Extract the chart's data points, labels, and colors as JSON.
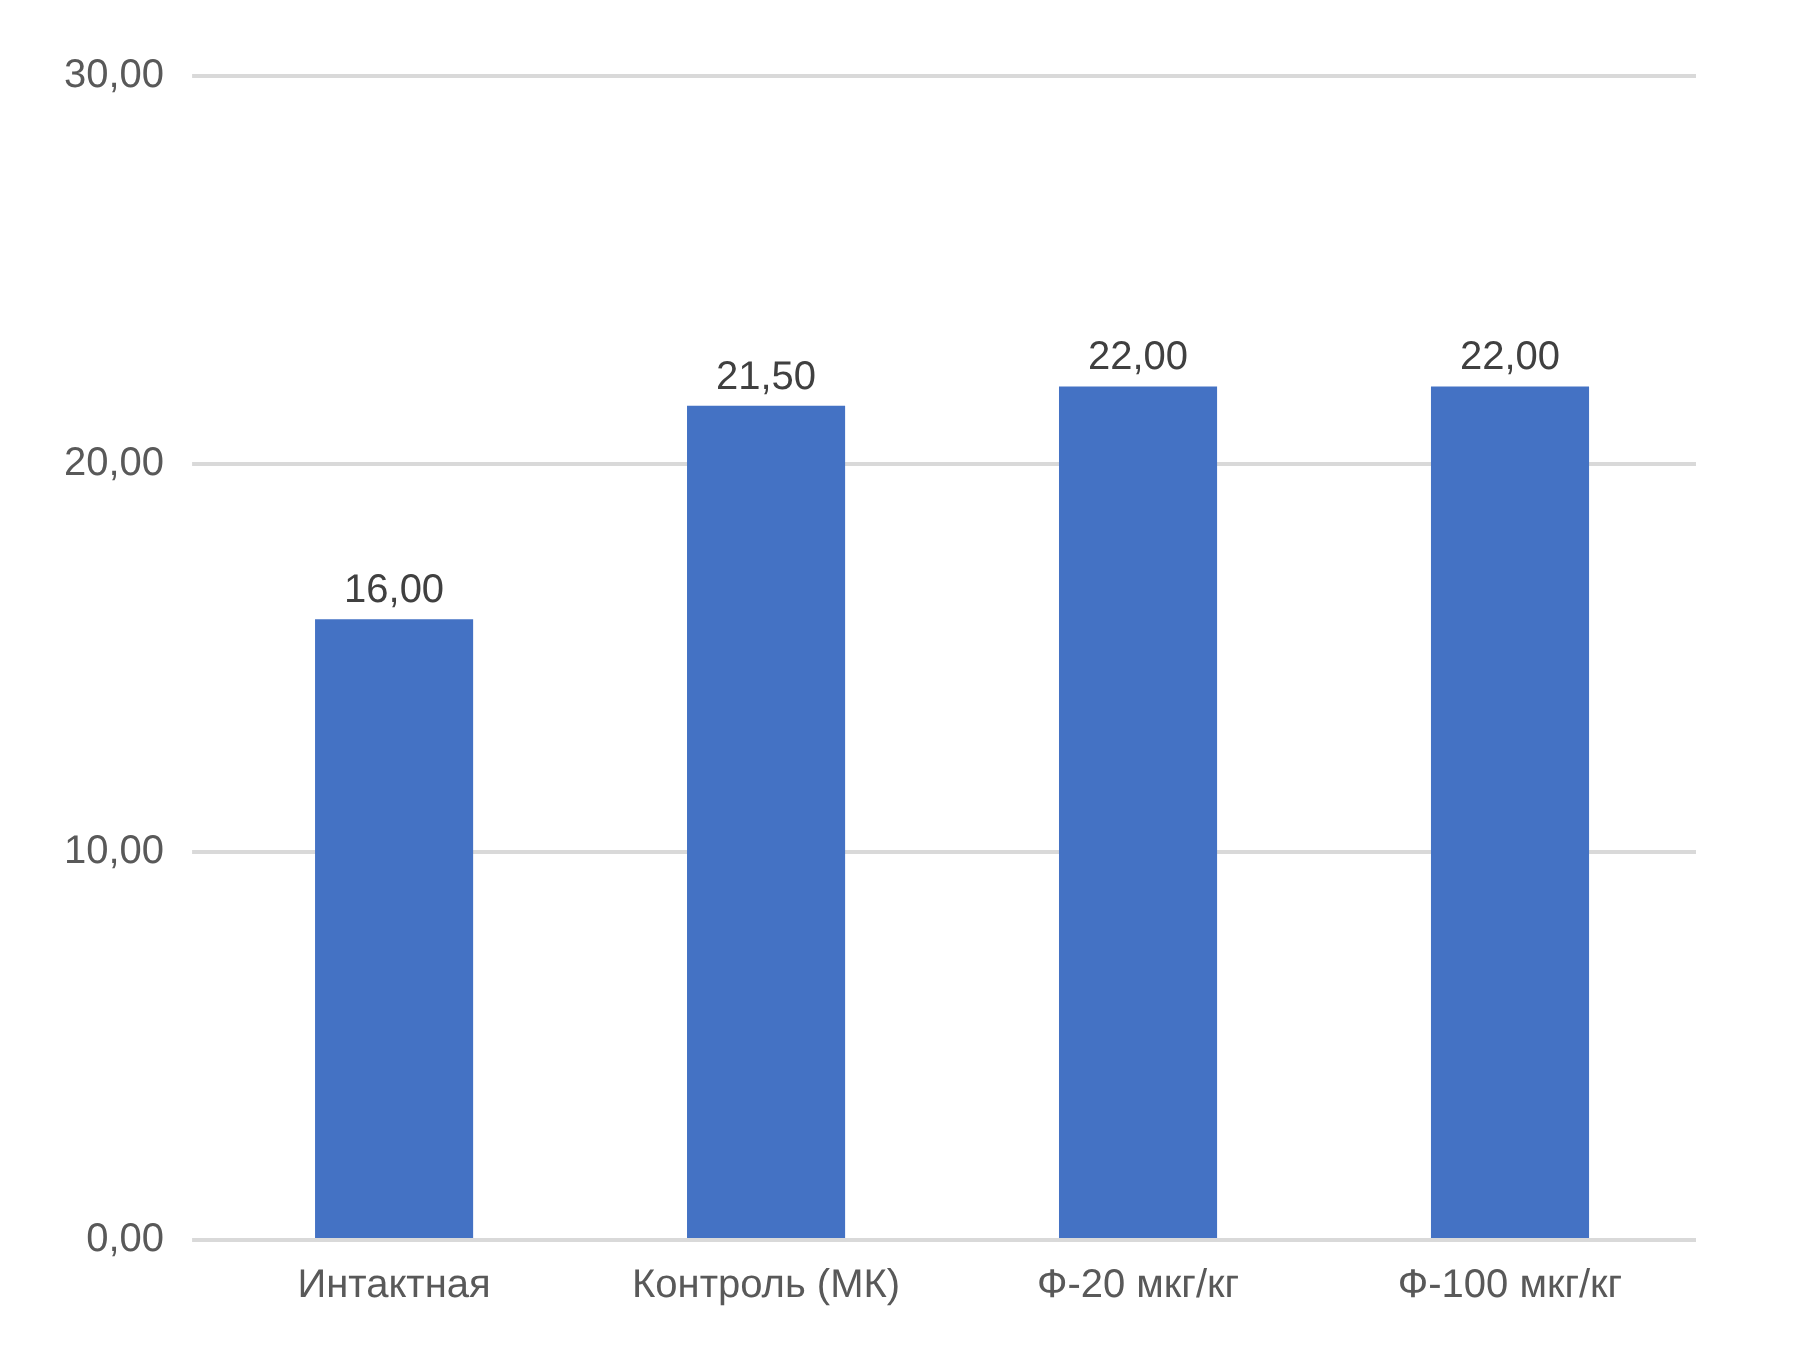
{
  "chart_data": {
    "type": "bar",
    "categories": [
      "Интактная",
      "Контроль (МК)",
      "Ф-20 мкг/кг",
      "Ф-100 мкг/кг"
    ],
    "values": [
      16,
      21.5,
      22,
      22
    ],
    "value_labels": [
      "16,00",
      "21,50",
      "22,00",
      "22,00"
    ],
    "color": "#4472c4",
    "ylim": [
      0,
      30
    ],
    "yticks": [
      {
        "value": 0,
        "label": "0,00"
      },
      {
        "value": 10,
        "label": "10,00"
      },
      {
        "value": 20,
        "label": "20,00"
      },
      {
        "value": 30,
        "label": "30,00"
      }
    ],
    "grid": "y",
    "legend": false
  }
}
